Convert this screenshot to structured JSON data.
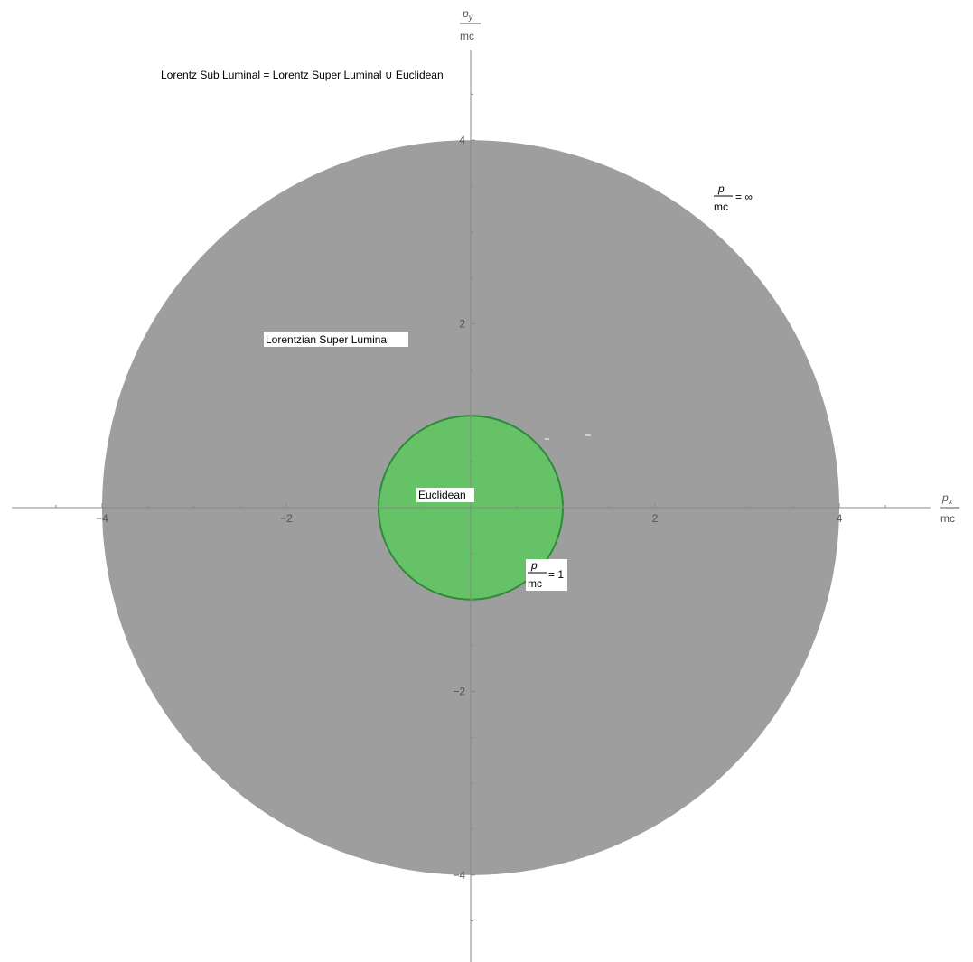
{
  "title": "Lorentz Sub Luminal = Lorentz Super Luminal ∪ Euclidean",
  "chart_data": {
    "type": "region-plot",
    "x_axis": {
      "range": [
        -5,
        5
      ],
      "label_num": "p",
      "label_sub": "x",
      "label_den": "mc",
      "ticks": [
        -4,
        -2,
        2,
        4
      ],
      "tick_labels": [
        "−4",
        "−2",
        "2",
        "4"
      ]
    },
    "y_axis": {
      "range": [
        -5,
        5
      ],
      "label_num": "p",
      "label_sub": "y",
      "label_den": "mc",
      "ticks": [
        -4,
        -2,
        2,
        4
      ],
      "tick_labels": [
        "−4",
        "−2",
        "2",
        "4"
      ]
    },
    "regions": [
      {
        "name": "Lorentzian Super Luminal",
        "shape": "disk",
        "center": [
          0,
          0
        ],
        "radius": 4.0,
        "color": "#9e9e9e"
      },
      {
        "name": "Euclidean",
        "shape": "disk",
        "center": [
          0,
          0
        ],
        "radius": 1.0,
        "color": "#66c266",
        "edge_color": "#2e8b3a"
      }
    ],
    "annotations": {
      "outer_boundary": {
        "num": "p",
        "den": "mc",
        "rhs": "= ∞"
      },
      "inner_boundary": {
        "num": "p",
        "den": "mc",
        "rhs": "= 1"
      },
      "super_luminal_label": "Lorentzian Super Luminal",
      "euclidean_label": "Euclidean"
    }
  }
}
